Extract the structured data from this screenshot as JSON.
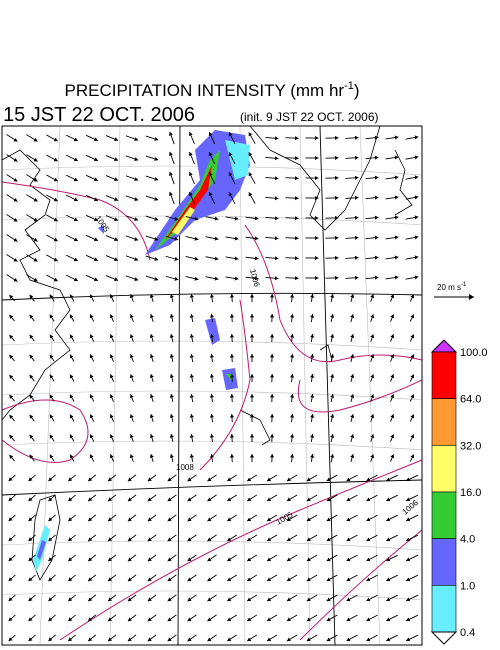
{
  "header": {
    "title": "PRECIPITATION INTENSITY (mm hr",
    "title_exponent": "-1",
    "title_close": ")",
    "valid_time": "15 JST 22 OCT. 2006",
    "init_time": "(init. 9 JST 22 OCT. 2006)"
  },
  "reference_vector": {
    "label": "20 m s",
    "exponent": "-1"
  },
  "colorbar": {
    "levels": [
      "100.0",
      "64.0",
      "32.0",
      "16.0",
      "4.0",
      "1.0",
      "0.4"
    ],
    "colors": [
      "#ff0000",
      "#ff9933",
      "#ffff66",
      "#33cc33",
      "#6666ff",
      "#66eeff"
    ],
    "over_color": "#cc33ff",
    "under_color": "#ffffff"
  },
  "contour_labels": [
    "1005",
    "1006",
    "1008",
    "1005",
    "1006"
  ]
}
